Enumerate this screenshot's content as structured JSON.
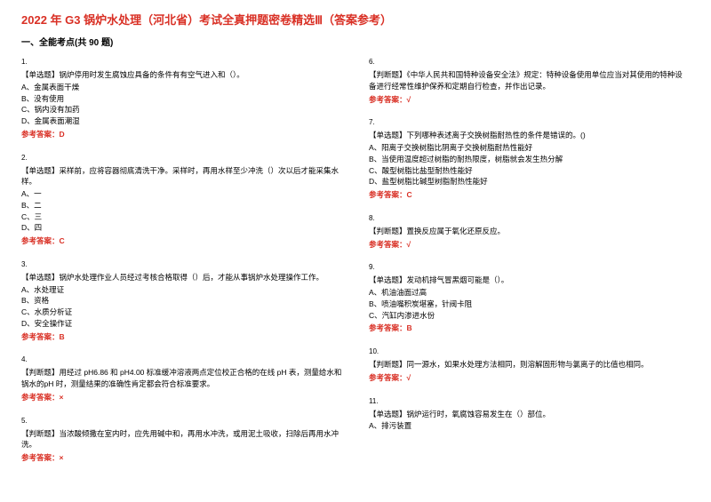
{
  "title": "2022 年 G3 锅炉水处理（河北省）考试全真押题密卷精选Ⅲ（答案参考）",
  "sectionHeader": "一、全能考点(共 90 题)",
  "leftColumn": [
    {
      "num": "1.",
      "text": "【单选题】锅炉停用时发生腐蚀应具备的条件有有空气进入和（）。",
      "options": [
        "A、金属表面干燥",
        "B、没有使用",
        "C、锅内没有加药",
        "D、金属表面潮湿"
      ],
      "answer": "参考答案：D"
    },
    {
      "num": "2.",
      "text": "【单选题】采样前，应将容器彻底清洗干净。采样时，再用水样至少冲洗（）次以后才能采集水样。",
      "options": [
        "A、一",
        "B、二",
        "C、三",
        "D、四"
      ],
      "answer": "参考答案：C"
    },
    {
      "num": "3.",
      "text": "【单选题】锅炉水处理作业人员经过考核合格取得（）后，才能从事锅炉水处理操作工作。",
      "options": [
        "A、水处理证",
        "B、资格",
        "C、水质分析证",
        "D、安全操作证"
      ],
      "answer": "参考答案：B"
    },
    {
      "num": "4.",
      "text": "【判断题】用经过 pH6.86 和 pH4.00 标准缓冲溶液两点定位校正合格的在线 pH 表，测量给水和锅水的pH 时，测量结果的准确性肯定都会符合标准要求。",
      "options": [],
      "answer": "参考答案：×"
    },
    {
      "num": "5.",
      "text": "【判断题】当浓酸倾撒在室内时，应先用碱中和，再用水冲洗，或用泥土吸收，扫除后再用水冲洗。",
      "options": [],
      "answer": "参考答案：×"
    }
  ],
  "rightColumn": [
    {
      "num": "6.",
      "text": "【判断题】《中华人民共和国特种设备安全法》规定：特种设备使用单位应当对其使用的特种设备进行经常性维护保养和定期自行检查，并作出记录。",
      "options": [],
      "answer": "参考答案：√"
    },
    {
      "num": "7.",
      "text": "【单选题】下列哪种表述离子交换树脂耐热性的条件是错误的。()",
      "options": [
        "A、阳离子交换树脂比阴离子交换树脂耐热性能好",
        "B、当使用温度超过树脂的耐热限度，树脂就会发生热分解",
        "C、酸型树脂比盐型耐热性能好",
        "D、盐型树脂比碱型树脂耐热性能好"
      ],
      "answer": "参考答案：C"
    },
    {
      "num": "8.",
      "text": "【判断题】置换反应属于氧化还原反应。",
      "options": [],
      "answer": "参考答案：√"
    },
    {
      "num": "9.",
      "text": "【单选题】发动机排气冒黑烟可能是（）。",
      "options": [
        "A、机油油面过高",
        "B、喷油嘴积炭堪塞，针阀卡阻",
        "C、汽缸内渗进水份"
      ],
      "answer": "参考答案：B"
    },
    {
      "num": "10.",
      "text": "【判断题】同一源水，如果水处理方法相同，则溶解固形物与氯离子的比值也相同。",
      "options": [],
      "answer": "参考答案：√"
    },
    {
      "num": "11.",
      "text": "【单选题】锅炉运行时，氧腐蚀容易发生在（）部位。",
      "options": [
        "A、排污装置"
      ],
      "answer": ""
    }
  ]
}
